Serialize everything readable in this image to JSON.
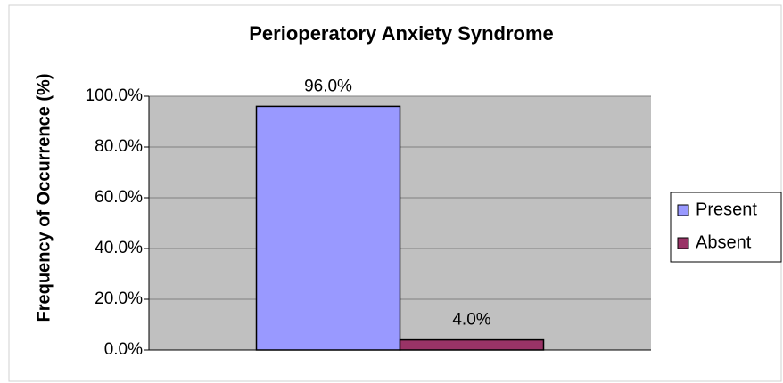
{
  "chart_data": {
    "type": "bar",
    "title": "Perioperatory Anxiety Syndrome",
    "y_label": "Frequency of Occurrence (%)",
    "categories": [
      null
    ],
    "series": [
      {
        "name": "Present",
        "color": "#9999ff",
        "values": [
          96
        ],
        "value_labels": [
          "96.0%"
        ]
      },
      {
        "name": "Absent",
        "color": "#993366",
        "values": [
          4
        ],
        "value_labels": [
          "4.0%"
        ]
      }
    ],
    "ylim": [
      0,
      100
    ],
    "yticks": [
      {
        "value": 0,
        "label": "0.0%"
      },
      {
        "value": 20,
        "label": "20.0%"
      },
      {
        "value": 40,
        "label": "40.0%"
      },
      {
        "value": 60,
        "label": "60.0%"
      },
      {
        "value": 80,
        "label": "80.0%"
      },
      {
        "value": 100,
        "label": "100.0%"
      }
    ],
    "grid": true,
    "legend": "right"
  }
}
